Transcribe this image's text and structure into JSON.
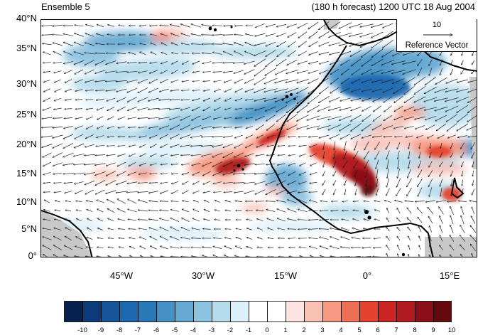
{
  "panel_title": "Ensemble 5",
  "forecast_label": "(180 h forecast) 1200 UTC 18 Aug 2004",
  "reference_vector": {
    "value": "10",
    "label": "Reference Vector"
  },
  "axes": {
    "lat_labels": [
      "40°N",
      "35°N",
      "30°N",
      "25°N",
      "20°N",
      "15°N",
      "10°N",
      "5°N",
      "0°"
    ],
    "lon_labels": [
      "45°W",
      "30°W",
      "15°W",
      "0°",
      "15°E"
    ]
  },
  "colorbar": {
    "labels": [
      "-10",
      "-9",
      "-8",
      "-7",
      "-6",
      "-5",
      "-4",
      "-3",
      "-2",
      "-1",
      "0",
      "1",
      "2",
      "3",
      "4",
      "5",
      "6",
      "7",
      "8",
      "9",
      "10"
    ],
    "colors": [
      "#08214e",
      "#0c3a78",
      "#15549b",
      "#1c69b0",
      "#2979b9",
      "#4391c6",
      "#66a9d3",
      "#8cc3df",
      "#b5dbec",
      "#dcf0f9",
      "#ffffff",
      "#ffffff",
      "#fde3e1",
      "#f9c0b4",
      "#f5987f",
      "#ef6f55",
      "#e4432f",
      "#cc2424",
      "#b01a20",
      "#8a0e18",
      "#640a0f"
    ]
  },
  "map_colors": {
    "land_missing": "#c8c8c8",
    "coast": "#000000",
    "arrow": "#1e1e1e"
  }
}
